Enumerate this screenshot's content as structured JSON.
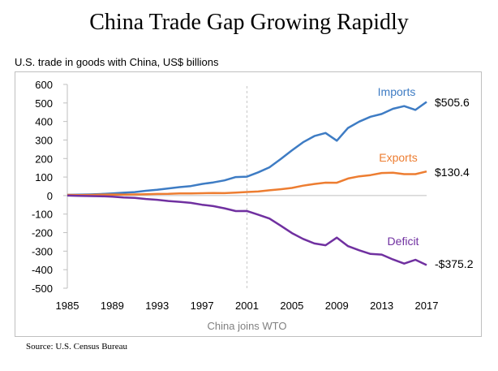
{
  "title": "China Trade Gap Growing Rapidly",
  "source": "Source: U.S. Census Bureau",
  "chart_data": {
    "type": "line",
    "subtitle": "U.S. trade in goods with China, US$ billions",
    "x": [
      1985,
      1986,
      1987,
      1988,
      1989,
      1990,
      1991,
      1992,
      1993,
      1994,
      1995,
      1996,
      1997,
      1998,
      1999,
      2000,
      2001,
      2002,
      2003,
      2004,
      2005,
      2006,
      2007,
      2008,
      2009,
      2010,
      2011,
      2012,
      2013,
      2014,
      2015,
      2016,
      2017
    ],
    "x_ticks": [
      "1985",
      "1989",
      "1993",
      "1997",
      "2001",
      "2005",
      "2009",
      "2013",
      "2017"
    ],
    "y_ticks": [
      "600",
      "500",
      "400",
      "300",
      "200",
      "100",
      "0",
      "-100",
      "-200",
      "-300",
      "-400",
      "-500"
    ],
    "ylim": [
      -500,
      600
    ],
    "xlim": [
      1985,
      2017
    ],
    "grid": false,
    "series": [
      {
        "name": "Imports",
        "color": "#3E7CC4",
        "end_label": "$505.6",
        "values": [
          3.9,
          4.8,
          6.3,
          8.5,
          12.0,
          15.2,
          19.0,
          25.7,
          31.5,
          38.8,
          45.5,
          51.5,
          62.6,
          71.2,
          81.8,
          100.0,
          102.3,
          125.2,
          152.4,
          196.7,
          243.5,
          287.8,
          321.4,
          337.8,
          296.4,
          364.9,
          399.4,
          425.6,
          440.4,
          468.5,
          483.2,
          462.4,
          505.6
        ]
      },
      {
        "name": "Exports",
        "color": "#ED7D31",
        "end_label": "$130.4",
        "values": [
          3.9,
          3.1,
          3.5,
          5.0,
          5.8,
          4.8,
          6.3,
          7.4,
          8.8,
          9.3,
          11.7,
          12.0,
          12.9,
          14.2,
          13.1,
          16.2,
          19.2,
          22.1,
          28.4,
          34.4,
          41.2,
          53.7,
          62.9,
          69.7,
          69.5,
          91.9,
          104.1,
          110.5,
          121.7,
          123.7,
          115.9,
          115.6,
          130.4
        ]
      },
      {
        "name": "Deficit",
        "color": "#7030A0",
        "end_label": "-$375.2",
        "values": [
          0,
          -1.7,
          -2.8,
          -3.5,
          -6.2,
          -10.4,
          -12.7,
          -18.3,
          -22.8,
          -29.5,
          -33.8,
          -39.5,
          -49.7,
          -57.0,
          -68.7,
          -83.8,
          -83.1,
          -103.1,
          -124.1,
          -162.3,
          -202.3,
          -234.1,
          -258.5,
          -268.0,
          -226.9,
          -273.0,
          -295.2,
          -315.1,
          -318.7,
          -344.8,
          -367.3,
          -346.8,
          -375.2
        ]
      }
    ],
    "annotations": [
      {
        "text": "China joins WTO",
        "x": 2001,
        "style": "dashed-vertical-line"
      }
    ]
  }
}
